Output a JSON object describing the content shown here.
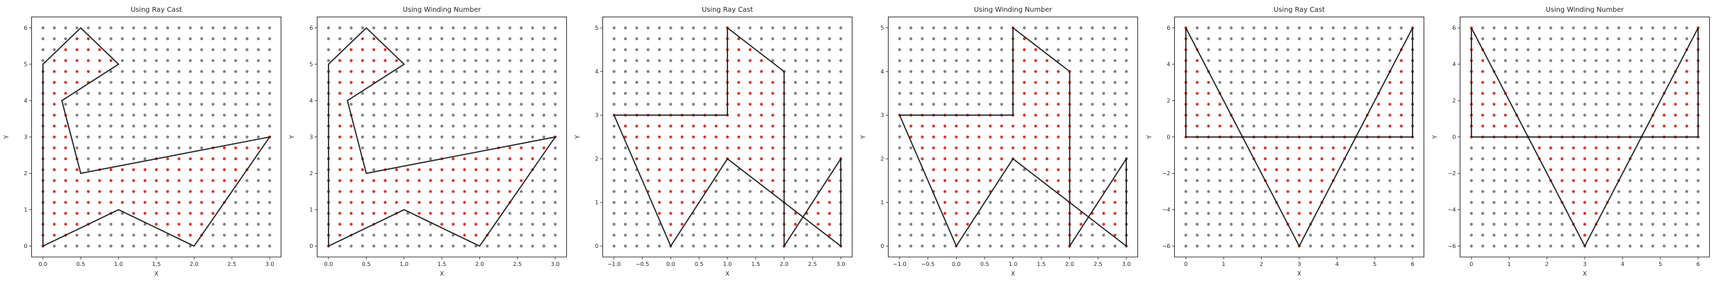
{
  "figure": {
    "background": "#ffffff",
    "subplot_count": 6,
    "description": "Point-in-polygon test visualizations comparing ray casting and winding number algorithms"
  },
  "colors": {
    "inside_point": "#d4382d",
    "outside_point": "#808080",
    "polygon_line": "#212121",
    "spine": "#333333",
    "text": "#262626"
  },
  "chart_data": [
    {
      "type": "scatter",
      "title": "Using Ray Cast",
      "method": "ray_cast",
      "xlabel": "X",
      "ylabel": "Y",
      "x_range": [
        0,
        3
      ],
      "y_range": [
        0,
        6
      ],
      "grid_points": {
        "nx": 21,
        "ny": 21
      },
      "xticks": [
        0.0,
        0.5,
        1.0,
        1.5,
        2.0,
        2.5,
        3.0
      ],
      "xtick_labels": [
        "0.0",
        "0.5",
        "1.0",
        "1.5",
        "2.0",
        "2.5",
        "3.0"
      ],
      "yticks": [
        0,
        1,
        2,
        3,
        4,
        5,
        6
      ],
      "ytick_labels": [
        "0",
        "1",
        "2",
        "3",
        "4",
        "5",
        "6"
      ],
      "polygon": [
        [
          0,
          0
        ],
        [
          0,
          5
        ],
        [
          0.5,
          6
        ],
        [
          1,
          5
        ],
        [
          0.25,
          4
        ],
        [
          0.5,
          2
        ],
        [
          3,
          3
        ],
        [
          2,
          0
        ],
        [
          1,
          1
        ]
      ],
      "grid": "off",
      "legend": "none"
    },
    {
      "type": "scatter",
      "title": "Using Winding Number",
      "method": "winding_number",
      "xlabel": "X",
      "ylabel": "Y",
      "x_range": [
        0,
        3
      ],
      "y_range": [
        0,
        6
      ],
      "grid_points": {
        "nx": 21,
        "ny": 21
      },
      "xticks": [
        0.0,
        0.5,
        1.0,
        1.5,
        2.0,
        2.5,
        3.0
      ],
      "xtick_labels": [
        "0.0",
        "0.5",
        "1.0",
        "1.5",
        "2.0",
        "2.5",
        "3.0"
      ],
      "yticks": [
        0,
        1,
        2,
        3,
        4,
        5,
        6
      ],
      "ytick_labels": [
        "0",
        "1",
        "2",
        "3",
        "4",
        "5",
        "6"
      ],
      "polygon": [
        [
          0,
          0
        ],
        [
          0,
          5
        ],
        [
          0.5,
          6
        ],
        [
          1,
          5
        ],
        [
          0.25,
          4
        ],
        [
          0.5,
          2
        ],
        [
          3,
          3
        ],
        [
          2,
          0
        ],
        [
          1,
          1
        ]
      ],
      "grid": "off",
      "legend": "none"
    },
    {
      "type": "scatter",
      "title": "Using Ray Cast",
      "method": "ray_cast",
      "xlabel": "X",
      "ylabel": "Y",
      "x_range": [
        -1,
        3
      ],
      "y_range": [
        0,
        5
      ],
      "grid_points": {
        "nx": 21,
        "ny": 21
      },
      "xticks": [
        -1.0,
        -0.5,
        0.0,
        0.5,
        1.0,
        1.5,
        2.0,
        2.5,
        3.0
      ],
      "xtick_labels": [
        "−1.0",
        "−0.5",
        "0.0",
        "0.5",
        "1.0",
        "1.5",
        "2.0",
        "2.5",
        "3.0"
      ],
      "yticks": [
        0,
        1,
        2,
        3,
        4,
        5
      ],
      "ytick_labels": [
        "0",
        "1",
        "2",
        "3",
        "4",
        "5"
      ],
      "polygon": [
        [
          -1,
          3
        ],
        [
          1,
          3
        ],
        [
          1,
          5
        ],
        [
          2,
          4
        ],
        [
          2,
          0
        ],
        [
          3,
          2
        ],
        [
          3,
          0
        ],
        [
          1,
          2
        ],
        [
          0,
          0
        ]
      ],
      "grid": "off",
      "legend": "none"
    },
    {
      "type": "scatter",
      "title": "Using Winding Number",
      "method": "winding_number",
      "xlabel": "X",
      "ylabel": "Y",
      "x_range": [
        -1,
        3
      ],
      "y_range": [
        0,
        5
      ],
      "grid_points": {
        "nx": 21,
        "ny": 21
      },
      "xticks": [
        -1.0,
        -0.5,
        0.0,
        0.5,
        1.0,
        1.5,
        2.0,
        2.5,
        3.0
      ],
      "xtick_labels": [
        "−1.0",
        "−0.5",
        "0.0",
        "0.5",
        "1.0",
        "1.5",
        "2.0",
        "2.5",
        "3.0"
      ],
      "yticks": [
        0,
        1,
        2,
        3,
        4,
        5
      ],
      "ytick_labels": [
        "0",
        "1",
        "2",
        "3",
        "4",
        "5"
      ],
      "polygon": [
        [
          -1,
          3
        ],
        [
          1,
          3
        ],
        [
          1,
          5
        ],
        [
          2,
          4
        ],
        [
          2,
          0
        ],
        [
          3,
          2
        ],
        [
          3,
          0
        ],
        [
          1,
          2
        ],
        [
          0,
          0
        ]
      ],
      "grid": "off",
      "legend": "none"
    },
    {
      "type": "scatter",
      "title": "Using Ray Cast",
      "method": "ray_cast",
      "xlabel": "X",
      "ylabel": "Y",
      "x_range": [
        0,
        6
      ],
      "y_range": [
        -6,
        6
      ],
      "grid_points": {
        "nx": 21,
        "ny": 21
      },
      "xticks": [
        0,
        1,
        2,
        3,
        4,
        5,
        6
      ],
      "xtick_labels": [
        "0",
        "1",
        "2",
        "3",
        "4",
        "5",
        "6"
      ],
      "yticks": [
        -6,
        -4,
        -2,
        0,
        2,
        4,
        6
      ],
      "ytick_labels": [
        "−6",
        "−4",
        "−2",
        "0",
        "2",
        "4",
        "6"
      ],
      "polygon": [
        [
          0,
          0
        ],
        [
          0,
          6
        ],
        [
          3,
          -6
        ],
        [
          6,
          6
        ],
        [
          6,
          0
        ]
      ],
      "grid": "off",
      "legend": "none"
    },
    {
      "type": "scatter",
      "title": "Using Winding Number",
      "method": "winding_number",
      "xlabel": "X",
      "ylabel": "Y",
      "x_range": [
        0,
        6
      ],
      "y_range": [
        -6,
        6
      ],
      "grid_points": {
        "nx": 21,
        "ny": 21
      },
      "xticks": [
        0,
        1,
        2,
        3,
        4,
        5,
        6
      ],
      "xtick_labels": [
        "0",
        "1",
        "2",
        "3",
        "4",
        "5",
        "6"
      ],
      "yticks": [
        -6,
        -4,
        -2,
        0,
        2,
        4,
        6
      ],
      "ytick_labels": [
        "−6",
        "−4",
        "−2",
        "0",
        "2",
        "4",
        "6"
      ],
      "polygon": [
        [
          0,
          0
        ],
        [
          0,
          6
        ],
        [
          3,
          -6
        ],
        [
          6,
          6
        ],
        [
          6,
          0
        ]
      ],
      "grid": "off",
      "legend": "none"
    }
  ]
}
